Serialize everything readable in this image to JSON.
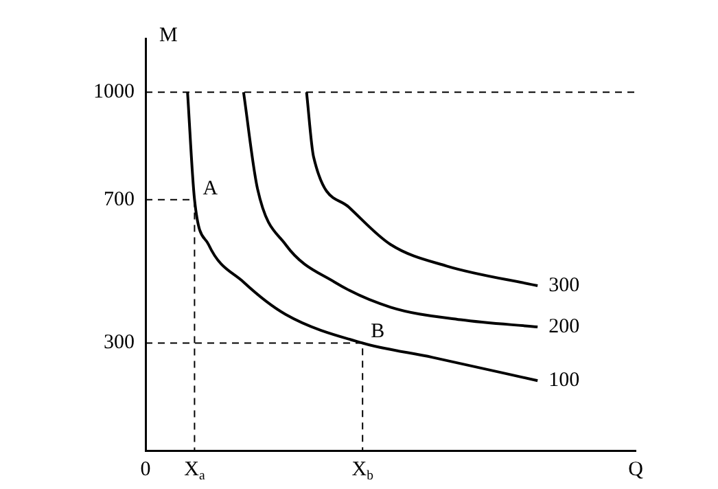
{
  "chart_data": {
    "type": "line",
    "xlabel": "Q",
    "ylabel": "M",
    "categories": [
      "0",
      null,
      null,
      null,
      null,
      null,
      null,
      "X$_{a}$",
      null,
      null,
      null,
      null,
      null,
      null,
      null,
      null,
      null,
      null,
      null,
      null,
      null,
      null,
      null,
      null,
      null,
      null,
      null,
      null,
      null,
      null,
      null,
      "X$_{b}$",
      null,
      null,
      null,
      null,
      null,
      null,
      null,
      null,
      null,
      null,
      null,
      null,
      null,
      null,
      null,
      null,
      null,
      null,
      null,
      null,
      null,
      null,
      null,
      null,
      null,
      null,
      null,
      null,
      null,
      null,
      null,
      null,
      null,
      null,
      null,
      null,
      null,
      null,
      null
    ],
    "ylim": [
      0,
      1150
    ],
    "yticks": [
      300,
      700,
      1000
    ],
    "grid": false,
    "legend": false,
    "marker": "none",
    "line_style": "solid",
    "series": [
      {
        "name": "100",
        "color": "#000000",
        "values": [
          null,
          null,
          null,
          null,
          null,
          null,
          1000,
          700,
          null,
          575,
          null,
          null,
          null,
          null,
          470,
          null,
          null,
          null,
          null,
          null,
          380,
          null,
          null,
          null,
          null,
          null,
          null,
          null,
          null,
          null,
          null,
          300,
          null,
          null,
          null,
          null,
          null,
          null,
          null,
          null,
          null,
          260,
          null,
          null,
          null,
          null,
          null,
          null,
          null,
          null,
          null,
          null,
          null,
          null,
          null,
          null,
          195,
          null,
          null,
          null,
          null,
          null,
          null,
          null,
          null,
          null,
          null,
          null,
          null,
          null,
          null
        ]
      },
      {
        "name": "200",
        "color": "#000000",
        "values": [
          null,
          null,
          null,
          null,
          null,
          null,
          null,
          null,
          null,
          null,
          null,
          null,
          null,
          null,
          1000,
          null,
          730,
          null,
          null,
          null,
          575,
          null,
          null,
          null,
          null,
          null,
          null,
          470,
          null,
          null,
          null,
          null,
          null,
          null,
          null,
          400,
          null,
          null,
          null,
          null,
          null,
          null,
          null,
          null,
          null,
          365,
          null,
          null,
          null,
          null,
          null,
          null,
          null,
          null,
          null,
          null,
          345,
          null,
          null,
          null,
          null,
          null,
          null,
          null,
          null,
          null,
          null,
          null,
          null,
          null,
          null
        ]
      },
      {
        "name": "300",
        "color": "#000000",
        "values": [
          null,
          null,
          null,
          null,
          null,
          null,
          null,
          null,
          null,
          null,
          null,
          null,
          null,
          null,
          null,
          null,
          null,
          null,
          null,
          null,
          null,
          null,
          null,
          1000,
          820,
          null,
          null,
          null,
          null,
          680,
          null,
          null,
          null,
          null,
          null,
          575,
          null,
          null,
          null,
          null,
          null,
          null,
          null,
          515,
          null,
          null,
          null,
          null,
          null,
          null,
          null,
          null,
          null,
          null,
          null,
          null,
          460,
          null,
          null,
          null,
          null,
          null,
          null,
          null,
          null,
          null,
          null,
          null,
          null,
          null,
          null
        ]
      },
      {
        "color": "#000000",
        "line_style": "dashed",
        "x": [
          "0",
          "X$_{a}$",
          "X$_{a}$"
        ],
        "values": [
          700,
          700,
          0
        ]
      },
      {
        "color": "#000000",
        "line_style": "dashed",
        "x": [
          "0",
          "X$_{b}$",
          "X$_{b}$"
        ],
        "values": [
          300,
          300,
          0
        ]
      }
    ],
    "ref_lines": [
      {
        "axis": "y",
        "value": 1000,
        "line_style": "dashed",
        "color": "#000000"
      }
    ],
    "annotations": [
      {
        "text": "A",
        "x": "X$_{a}$",
        "y": 700
      },
      {
        "text": "B",
        "x": "X$_{b}$",
        "y": 300
      }
    ]
  }
}
